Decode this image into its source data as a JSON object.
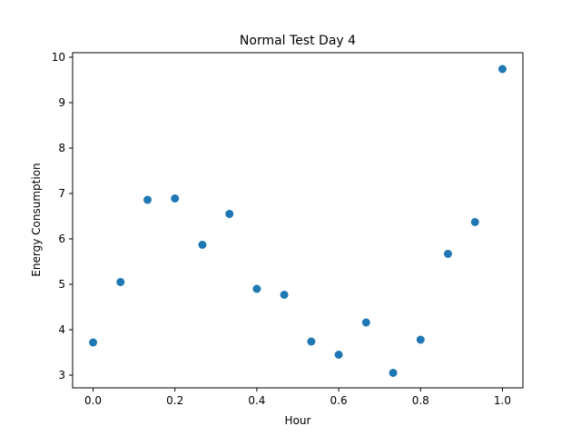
{
  "chart_data": {
    "type": "scatter",
    "title": "Normal Test Day 4",
    "xlabel": "Hour",
    "ylabel": "Energy Consumption",
    "xlim": [
      -0.05,
      1.05
    ],
    "ylim": [
      2.72,
      10.1
    ],
    "xticks": [
      "0.0",
      "0.2",
      "0.4",
      "0.6",
      "0.8",
      "1.0"
    ],
    "yticks": [
      "3",
      "4",
      "5",
      "6",
      "7",
      "8",
      "9",
      "10"
    ],
    "grid": false,
    "marker_color": "#1f77b4",
    "points": [
      {
        "x": 0.0,
        "y": 3.72
      },
      {
        "x": 0.067,
        "y": 5.05
      },
      {
        "x": 0.133,
        "y": 6.86
      },
      {
        "x": 0.2,
        "y": 6.89
      },
      {
        "x": 0.267,
        "y": 5.87
      },
      {
        "x": 0.333,
        "y": 6.55
      },
      {
        "x": 0.4,
        "y": 4.9
      },
      {
        "x": 0.467,
        "y": 4.77
      },
      {
        "x": 0.533,
        "y": 3.74
      },
      {
        "x": 0.6,
        "y": 3.45
      },
      {
        "x": 0.667,
        "y": 4.16
      },
      {
        "x": 0.733,
        "y": 3.05
      },
      {
        "x": 0.8,
        "y": 3.78
      },
      {
        "x": 0.867,
        "y": 5.67
      },
      {
        "x": 0.933,
        "y": 6.37
      },
      {
        "x": 1.0,
        "y": 9.74
      }
    ]
  }
}
